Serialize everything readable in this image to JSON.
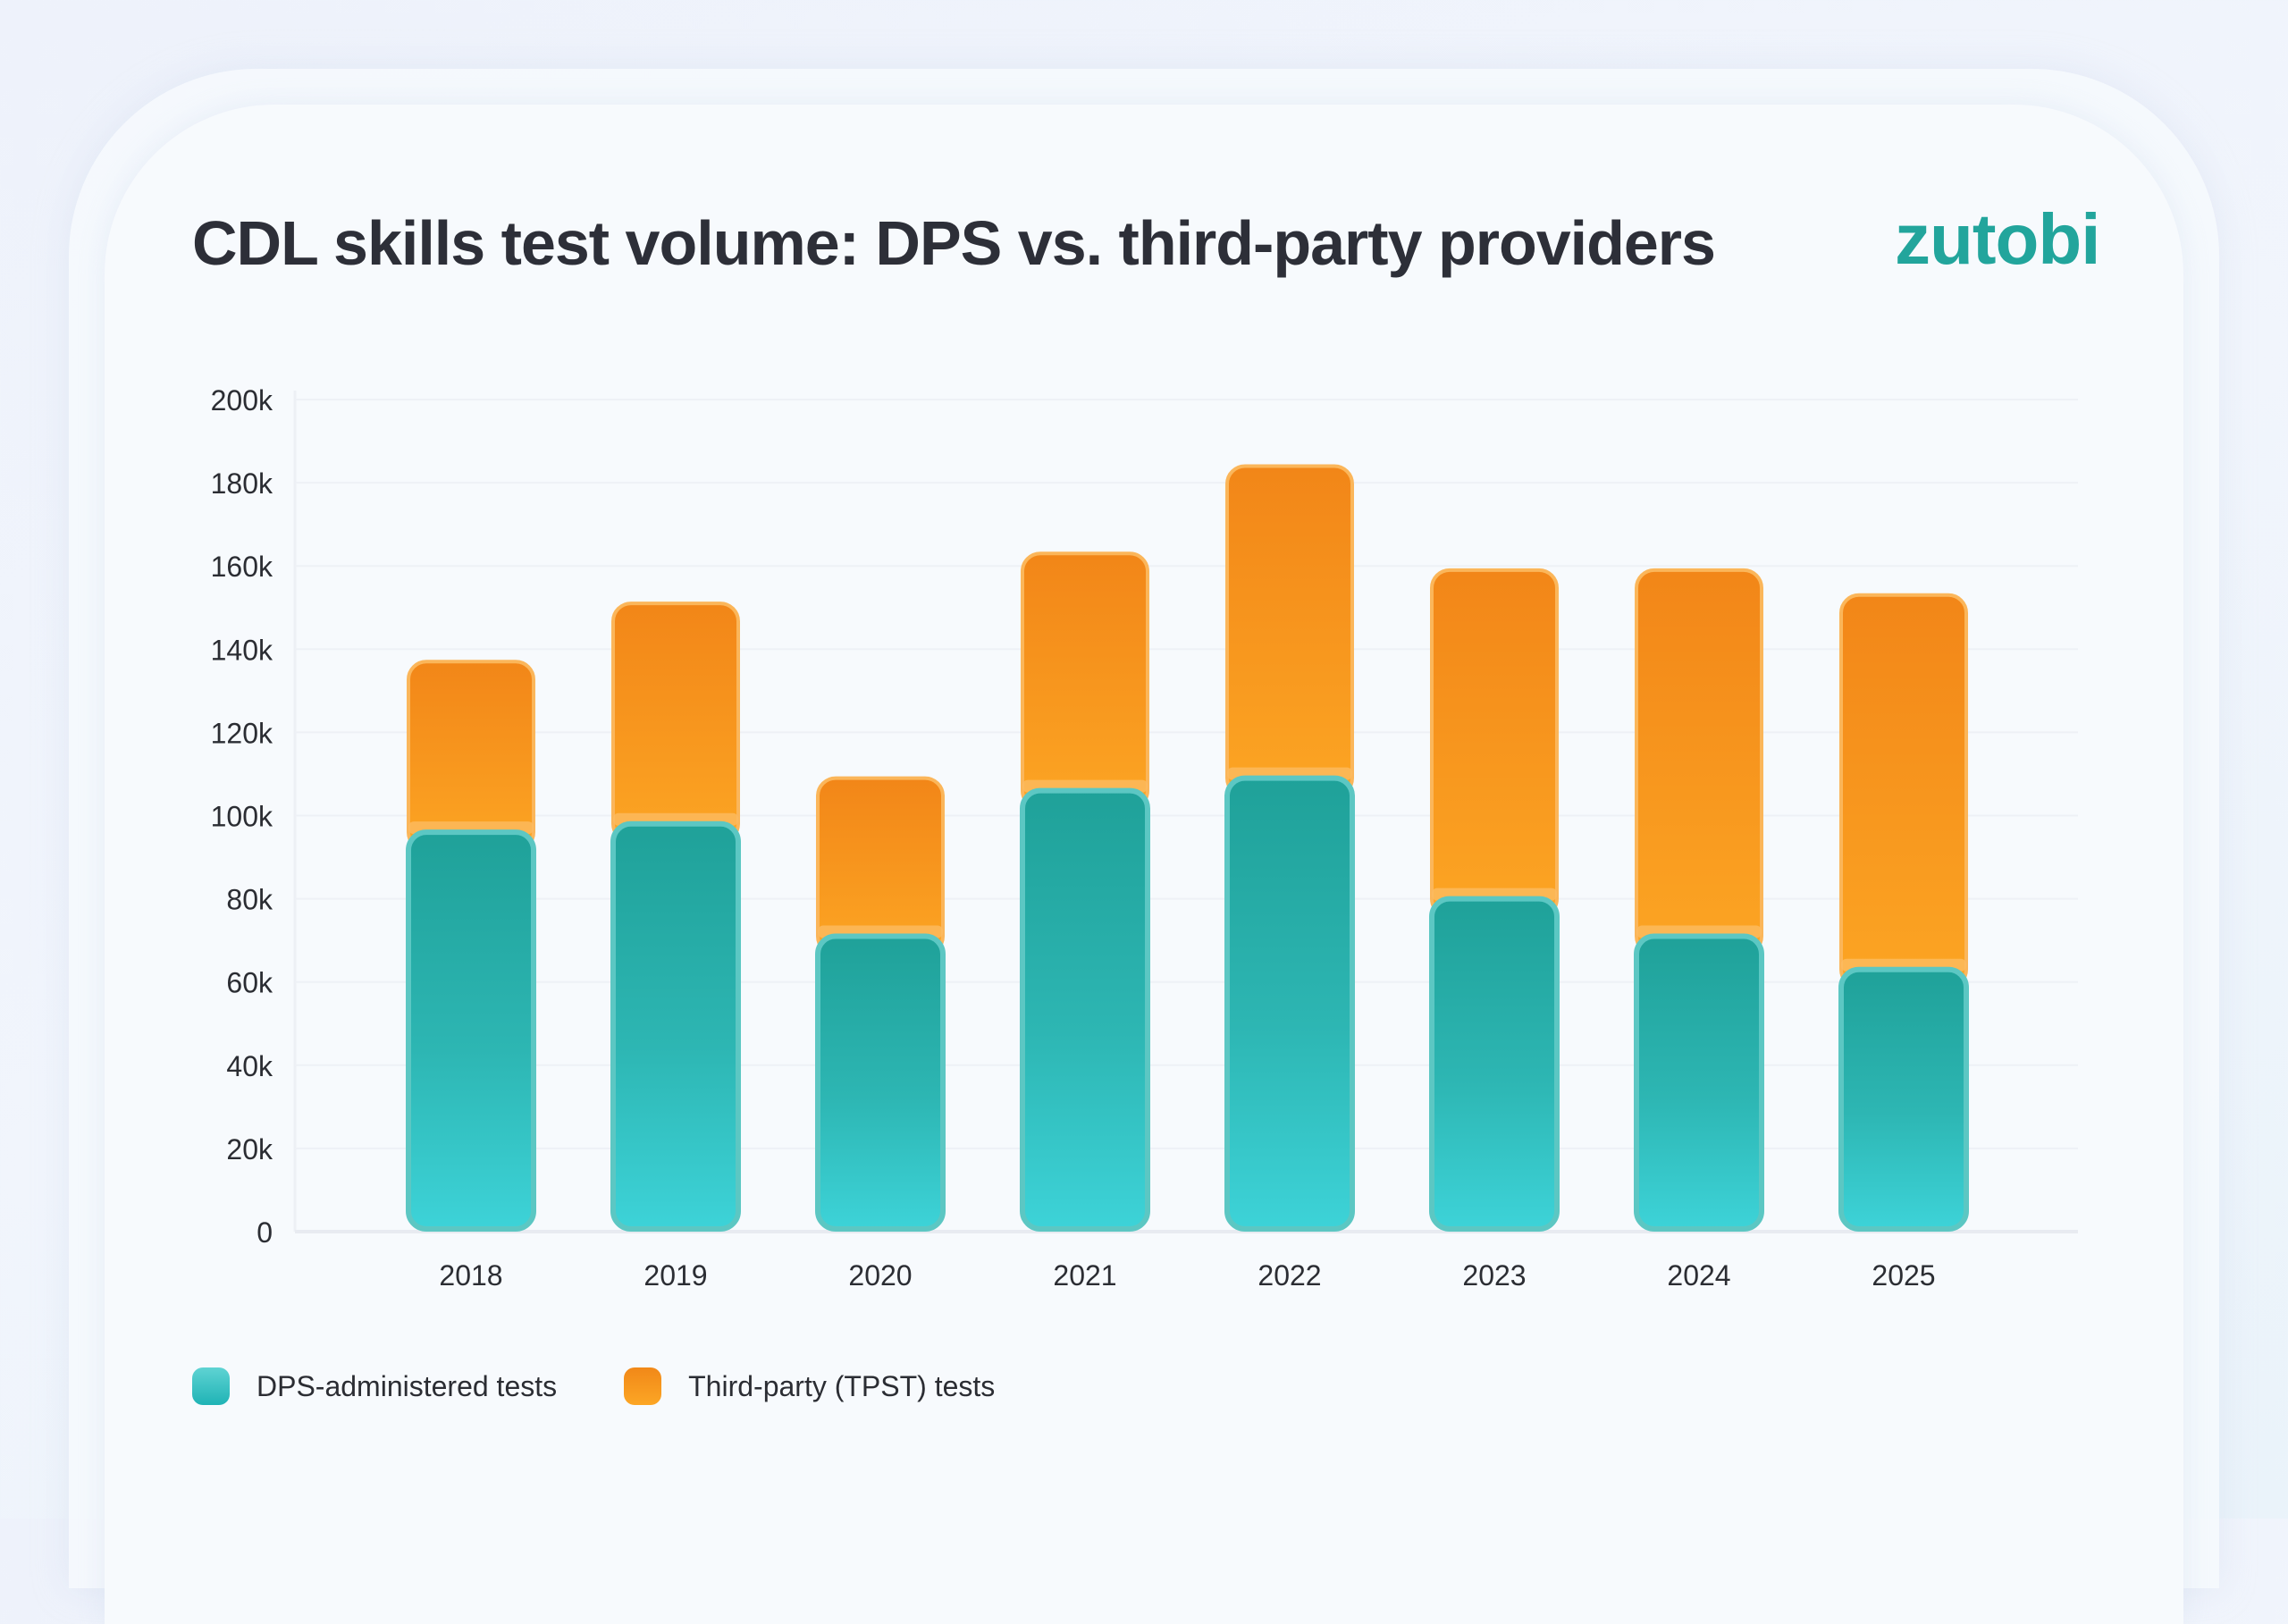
{
  "header": {
    "title": "CDL skills test volume: DPS vs. third-party providers",
    "logo": "zutobi"
  },
  "colors": {
    "dps": "#2bb8b7",
    "dps_light": "#3dd2d6",
    "dps_dark": "#1fa199",
    "tpst": "#f5921d",
    "tpst_light": "#fca624",
    "brand": "#22a59c"
  },
  "legend": [
    {
      "key": "dps",
      "label": "DPS-administered tests"
    },
    {
      "key": "tpst",
      "label": "Third-party (TPST) tests"
    }
  ],
  "chart_data": {
    "type": "bar",
    "stacked": true,
    "title": "CDL skills test volume: DPS vs. third-party providers",
    "xlabel": "",
    "ylabel": "",
    "categories": [
      "2018",
      "2019",
      "2020",
      "2021",
      "2022",
      "2023",
      "2024",
      "2025"
    ],
    "series": [
      {
        "name": "DPS-administered tests",
        "key": "dps",
        "values": [
          96000,
          98000,
          71000,
          106000,
          109000,
          80000,
          71000,
          63000
        ]
      },
      {
        "name": "Third-party (TPST) tests",
        "key": "tpst",
        "values": [
          41000,
          53000,
          38000,
          57000,
          75000,
          79000,
          88000,
          90000
        ]
      }
    ],
    "ylim": [
      0,
      200000
    ],
    "yticks": [
      0,
      20000,
      40000,
      60000,
      80000,
      100000,
      120000,
      140000,
      160000,
      180000,
      200000
    ],
    "ytick_labels": [
      "0",
      "20k",
      "40k",
      "60k",
      "80k",
      "100k",
      "120k",
      "140k",
      "160k",
      "180k",
      "200k"
    ],
    "grid": true,
    "legend_position": "bottom-left"
  }
}
